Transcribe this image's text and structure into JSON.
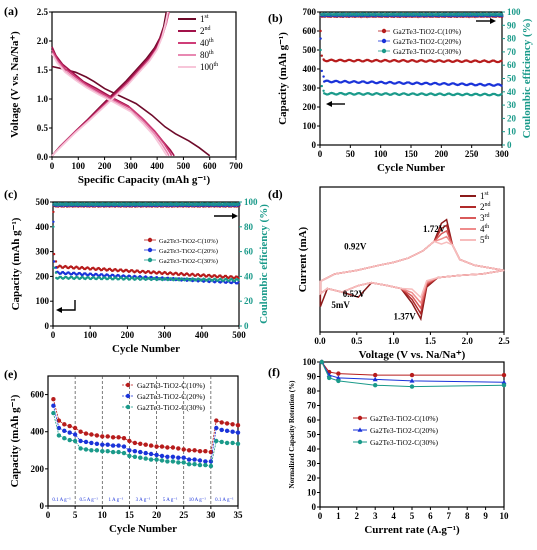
{
  "chart_data": [
    {
      "tag": "(a)",
      "type": "line",
      "xlabel": "Specific Capacity (mAh g⁻¹)",
      "ylabel": "Voltage (V vs. Na/Na⁺)",
      "xlim": [
        0,
        700
      ],
      "ylim": [
        0,
        2.5
      ],
      "xticks": [
        0,
        100,
        200,
        300,
        400,
        500,
        600,
        700
      ],
      "yticks": [
        0.0,
        0.5,
        1.0,
        1.5,
        2.0,
        2.5
      ],
      "legend_position": "top-right",
      "series": [
        {
          "name": "1st",
          "sup": "st",
          "base": "1",
          "color": "#6e0a2a",
          "discharge": [
            [
              0,
              1.56
            ],
            [
              40,
              1.52
            ],
            [
              90,
              1.46
            ],
            [
              130,
              1.38
            ],
            [
              160,
              1.3
            ],
            [
              200,
              1.18
            ],
            [
              260,
              1.05
            ],
            [
              320,
              0.92
            ],
            [
              380,
              0.72
            ],
            [
              430,
              0.52
            ],
            [
              470,
              0.4
            ],
            [
              520,
              0.28
            ],
            [
              560,
              0.16
            ],
            [
              600,
              0.02
            ]
          ],
          "charge": [
            [
              0,
              0.02
            ],
            [
              30,
              0.18
            ],
            [
              80,
              0.4
            ],
            [
              130,
              0.62
            ],
            [
              180,
              0.85
            ],
            [
              230,
              1.08
            ],
            [
              280,
              1.3
            ],
            [
              320,
              1.5
            ],
            [
              360,
              1.7
            ],
            [
              390,
              1.88
            ],
            [
              410,
              2.05
            ],
            [
              425,
              2.25
            ],
            [
              435,
              2.5
            ]
          ]
        },
        {
          "name": "2nd",
          "sup": "nd",
          "base": "2",
          "color": "#a2124a",
          "discharge": [
            [
              0,
              1.9
            ],
            [
              15,
              1.75
            ],
            [
              40,
              1.6
            ],
            [
              80,
              1.45
            ],
            [
              120,
              1.3
            ],
            [
              170,
              1.18
            ],
            [
              230,
              1.02
            ],
            [
              290,
              0.88
            ],
            [
              340,
              0.68
            ],
            [
              390,
              0.45
            ],
            [
              420,
              0.28
            ],
            [
              450,
              0.12
            ],
            [
              465,
              0.02
            ]
          ],
          "charge": [
            [
              0,
              0.02
            ],
            [
              40,
              0.22
            ],
            [
              90,
              0.45
            ],
            [
              140,
              0.66
            ],
            [
              190,
              0.88
            ],
            [
              240,
              1.1
            ],
            [
              290,
              1.32
            ],
            [
              330,
              1.52
            ],
            [
              370,
              1.72
            ],
            [
              400,
              1.92
            ],
            [
              420,
              2.15
            ],
            [
              435,
              2.35
            ],
            [
              445,
              2.5
            ]
          ]
        },
        {
          "name": "40th",
          "sup": "th",
          "base": "40",
          "color": "#cf3d78",
          "discharge": [
            [
              0,
              1.85
            ],
            [
              20,
              1.68
            ],
            [
              50,
              1.52
            ],
            [
              90,
              1.38
            ],
            [
              130,
              1.25
            ],
            [
              180,
              1.12
            ],
            [
              240,
              0.98
            ],
            [
              300,
              0.84
            ],
            [
              350,
              0.64
            ],
            [
              395,
              0.42
            ],
            [
              425,
              0.24
            ],
            [
              448,
              0.08
            ],
            [
              455,
              0.02
            ]
          ],
          "charge": [
            [
              0,
              0.02
            ],
            [
              40,
              0.22
            ],
            [
              90,
              0.44
            ],
            [
              140,
              0.64
            ],
            [
              190,
              0.86
            ],
            [
              240,
              1.07
            ],
            [
              290,
              1.28
            ],
            [
              330,
              1.48
            ],
            [
              370,
              1.68
            ],
            [
              400,
              1.88
            ],
            [
              420,
              2.1
            ],
            [
              435,
              2.3
            ],
            [
              445,
              2.5
            ]
          ]
        },
        {
          "name": "80th",
          "sup": "th",
          "base": "80",
          "color": "#e889b2",
          "discharge": [
            [
              0,
              1.8
            ],
            [
              20,
              1.64
            ],
            [
              50,
              1.48
            ],
            [
              90,
              1.34
            ],
            [
              130,
              1.22
            ],
            [
              180,
              1.09
            ],
            [
              240,
              0.95
            ],
            [
              300,
              0.8
            ],
            [
              350,
              0.6
            ],
            [
              390,
              0.4
            ],
            [
              418,
              0.22
            ],
            [
              438,
              0.08
            ],
            [
              445,
              0.02
            ]
          ],
          "charge": [
            [
              0,
              0.02
            ],
            [
              40,
              0.21
            ],
            [
              90,
              0.43
            ],
            [
              140,
              0.63
            ],
            [
              190,
              0.84
            ],
            [
              240,
              1.05
            ],
            [
              290,
              1.26
            ],
            [
              330,
              1.46
            ],
            [
              370,
              1.66
            ],
            [
              400,
              1.86
            ],
            [
              420,
              2.08
            ],
            [
              433,
              2.28
            ],
            [
              442,
              2.5
            ]
          ]
        },
        {
          "name": "100th",
          "sup": "th",
          "base": "100",
          "color": "#f7c6d9",
          "discharge": [
            [
              0,
              1.78
            ],
            [
              20,
              1.62
            ],
            [
              50,
              1.46
            ],
            [
              90,
              1.32
            ],
            [
              130,
              1.2
            ],
            [
              180,
              1.07
            ],
            [
              240,
              0.93
            ],
            [
              300,
              0.78
            ],
            [
              345,
              0.58
            ],
            [
              385,
              0.38
            ],
            [
              412,
              0.2
            ],
            [
              430,
              0.07
            ],
            [
              437,
              0.02
            ]
          ],
          "charge": [
            [
              0,
              0.02
            ],
            [
              40,
              0.2
            ],
            [
              90,
              0.42
            ],
            [
              140,
              0.62
            ],
            [
              190,
              0.83
            ],
            [
              240,
              1.04
            ],
            [
              290,
              1.25
            ],
            [
              330,
              1.45
            ],
            [
              370,
              1.65
            ],
            [
              400,
              1.85
            ],
            [
              418,
              2.06
            ],
            [
              430,
              2.27
            ],
            [
              440,
              2.5
            ]
          ]
        }
      ]
    },
    {
      "tag": "(b)",
      "type": "scatter",
      "xlabel": "Cycle Number",
      "ylabel": "Capacity (mAh g⁻¹)",
      "y2label": "Coulombic efficiency (%)",
      "xlim": [
        0,
        300
      ],
      "ylim": [
        0,
        700
      ],
      "y2lim": [
        0,
        100
      ],
      "xticks": [
        0,
        50,
        100,
        150,
        200,
        250,
        300
      ],
      "yticks": [
        0,
        100,
        200,
        300,
        400,
        500,
        600,
        700
      ],
      "y2ticks": [
        0,
        10,
        20,
        30,
        40,
        50,
        60,
        70,
        80,
        90,
        100
      ],
      "legend_position": "top-right",
      "series": [
        {
          "name": "Ga2Te3-TiO2-C(10%)",
          "color": "#b71c1c",
          "start": [
            [
              1,
              600
            ],
            [
              3,
              470
            ],
            [
              6,
              450
            ]
          ],
          "plateau": 445,
          "end": 440,
          "ce": 97
        },
        {
          "name": "Ga2Te3-TiO2-C(20%)",
          "color": "#1a33d9",
          "start": [
            [
              1,
              560
            ],
            [
              3,
              390
            ],
            [
              6,
              360
            ]
          ],
          "plateau": 335,
          "end": 315,
          "ce": 98
        },
        {
          "name": "Ga2Te3-TiO2-C(30%)",
          "color": "#1a9a8a",
          "start": [
            [
              1,
              500
            ],
            [
              3,
              310
            ],
            [
              6,
              285
            ]
          ],
          "plateau": 270,
          "end": 265,
          "ce": 99
        }
      ]
    },
    {
      "tag": "(c)",
      "type": "scatter",
      "xlabel": "Cycle Number",
      "ylabel": "Capacity (mAh g⁻¹)",
      "y2label": "Coulombic efficiency (%)",
      "xlim": [
        0,
        500
      ],
      "ylim": [
        0,
        500
      ],
      "y2lim": [
        0,
        100
      ],
      "xticks": [
        0,
        100,
        200,
        300,
        400,
        500
      ],
      "yticks": [
        0,
        100,
        200,
        300,
        400,
        500
      ],
      "y2ticks": [
        0,
        20,
        40,
        60,
        80,
        100
      ],
      "legend_position": "center-right",
      "series": [
        {
          "name": "Ga2Te3-TiO2-C(10%)",
          "color": "#b71c1c",
          "start": [
            [
              1,
              460
            ],
            [
              3,
              290
            ],
            [
              8,
              260
            ]
          ],
          "plateau": 240,
          "end": 195,
          "ce": 97
        },
        {
          "name": "Ga2Te3-TiO2-C(20%)",
          "color": "#1a33d9",
          "start": [
            [
              1,
              420
            ],
            [
              3,
              260
            ],
            [
              8,
              235
            ]
          ],
          "plateau": 215,
          "end": 175,
          "ce": 98
        },
        {
          "name": "Ga2Te3-TiO2-C(30%)",
          "color": "#1a9a8a",
          "start": [
            [
              1,
              400
            ],
            [
              3,
              235
            ],
            [
              8,
              215
            ]
          ],
          "plateau": 195,
          "end": 185,
          "ce": 99
        }
      ]
    },
    {
      "tag": "(d)",
      "type": "line",
      "xlabel": "Voltage (V vs. Na/Na⁺)",
      "ylabel": "Current (mA)",
      "xlim": [
        0.0,
        2.5
      ],
      "ylim": [
        -0.8,
        1.2
      ],
      "xticks": [
        0.0,
        0.5,
        1.0,
        1.5,
        2.0,
        2.5
      ],
      "legend_position": "top-right",
      "annotations": [
        {
          "text": "1.72V",
          "x": 1.55,
          "y": 0.58
        },
        {
          "text": "0.92V",
          "x": 0.48,
          "y": 0.34
        },
        {
          "text": "0.52V",
          "x": 0.46,
          "y": -0.32
        },
        {
          "text": "5mV",
          "x": 0.28,
          "y": -0.47
        },
        {
          "text": "1.37V",
          "x": 1.15,
          "y": -0.63
        }
      ],
      "series": [
        {
          "name": "1st",
          "sup": "st",
          "base": "1",
          "color": "#8b1a1a"
        },
        {
          "name": "2nd",
          "sup": "nd",
          "base": "2",
          "color": "#b02a2a"
        },
        {
          "name": "3rd",
          "sup": "rd",
          "base": "3",
          "color": "#d95a5a"
        },
        {
          "name": "4th",
          "sup": "th",
          "base": "4",
          "color": "#ef8c8c"
        },
        {
          "name": "5th",
          "sup": "th",
          "base": "5",
          "color": "#f7bdbd"
        }
      ]
    },
    {
      "tag": "(e)",
      "type": "scatter",
      "xlabel": "Cycle Number",
      "ylabel": "Capacity (mAh g⁻¹)",
      "xlim": [
        0,
        35
      ],
      "ylim": [
        0,
        700
      ],
      "xticks": [
        0,
        5,
        10,
        15,
        20,
        25,
        30,
        35
      ],
      "yticks": [
        0,
        200,
        400,
        600
      ],
      "legend_position": "top-right",
      "rate_labels": [
        "0.1 A g⁻¹",
        "0.5 A g⁻¹",
        "1 A g⁻¹",
        "3 A g⁻¹",
        "5 A g⁻¹",
        "10 A g⁻¹",
        "0.1 A g⁻¹"
      ],
      "series": [
        {
          "name": "Ga2Te3-TiO2-C(10%)",
          "color": "#b71c1c",
          "values": [
            575,
            460,
            440,
            430,
            420,
            400,
            390,
            385,
            380,
            375,
            375,
            370,
            370,
            365,
            350,
            340,
            335,
            330,
            325,
            320,
            320,
            315,
            315,
            310,
            305,
            300,
            300,
            295,
            295,
            290,
            460,
            450,
            445,
            440,
            435
          ]
        },
        {
          "name": "Ga2Te3-TiO2-C(20%)",
          "color": "#1a33d9",
          "values": [
            540,
            420,
            405,
            395,
            385,
            350,
            345,
            340,
            335,
            330,
            330,
            325,
            325,
            320,
            300,
            295,
            290,
            285,
            280,
            275,
            270,
            265,
            265,
            260,
            260,
            250,
            250,
            245,
            240,
            240,
            420,
            410,
            405,
            400,
            395
          ]
        },
        {
          "name": "Ga2Te3-TiO2-C(30%)",
          "color": "#1a9a8a",
          "values": [
            500,
            380,
            365,
            355,
            350,
            310,
            305,
            300,
            300,
            295,
            295,
            290,
            290,
            285,
            270,
            265,
            260,
            255,
            250,
            250,
            245,
            240,
            240,
            235,
            235,
            225,
            225,
            220,
            220,
            215,
            350,
            345,
            340,
            340,
            335
          ]
        }
      ]
    },
    {
      "tag": "(f)",
      "type": "line",
      "xlabel": "Current rate (A.g⁻¹)",
      "ylabel": "Normalized Capacity Retention (%)",
      "xlim": [
        0,
        10
      ],
      "ylim": [
        0,
        100
      ],
      "xticks": [
        0,
        1,
        2,
        3,
        4,
        5,
        6,
        7,
        8,
        9,
        10
      ],
      "yticks": [
        0,
        10,
        20,
        30,
        40,
        50,
        60,
        70,
        80,
        90,
        100
      ],
      "legend_position": "center-right",
      "x": [
        0.1,
        0.5,
        1,
        3,
        5,
        10
      ],
      "series": [
        {
          "name": "Ga2Te3-TiO2-C(10%)",
          "color": "#b71c1c",
          "marker": "circle",
          "values": [
            100,
            93,
            92,
            91,
            91,
            91
          ]
        },
        {
          "name": "Ga2Te3-TiO2-C(20%)",
          "color": "#1a33d9",
          "marker": "triangle",
          "values": [
            100,
            91,
            89,
            88,
            87,
            86
          ]
        },
        {
          "name": "Ga2Te3-TiO2-C(30%)",
          "color": "#1a9a8a",
          "marker": "circle",
          "values": [
            100,
            89,
            87,
            84,
            83,
            84
          ]
        }
      ]
    }
  ]
}
